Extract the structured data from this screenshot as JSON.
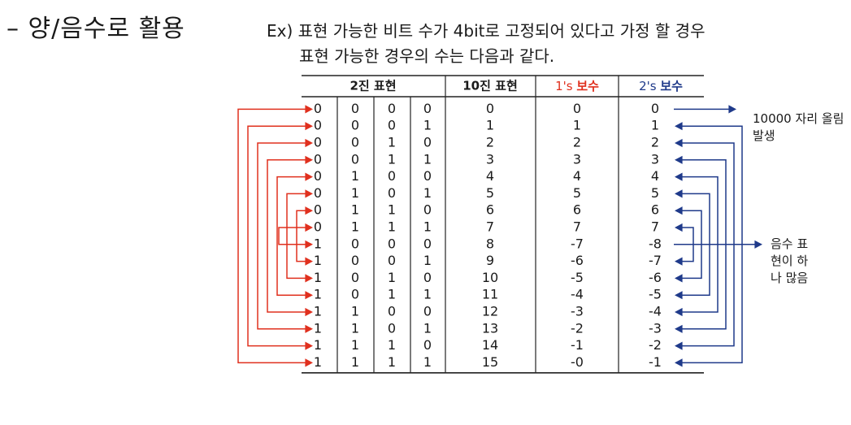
{
  "heading": "– 양/음수로 활용",
  "description": {
    "line1": "Ex)  표현 가능한 비트 수가 4bit로 고정되어 있다고 가정 할 경우",
    "line2": "표현 가능한 경우의 수는 다음과 같다."
  },
  "table": {
    "headers": {
      "binary": "2진 표현",
      "decimal": "10진 표현",
      "ones_prefix": "1's",
      "ones_suffix": "보수",
      "twos_prefix": "2's",
      "twos_suffix": "보수"
    },
    "rows": [
      {
        "bits": [
          "0",
          "0",
          "0",
          "0"
        ],
        "decimal": "0",
        "ones": "0",
        "twos": "0"
      },
      {
        "bits": [
          "0",
          "0",
          "0",
          "1"
        ],
        "decimal": "1",
        "ones": "1",
        "twos": "1"
      },
      {
        "bits": [
          "0",
          "0",
          "1",
          "0"
        ],
        "decimal": "2",
        "ones": "2",
        "twos": "2"
      },
      {
        "bits": [
          "0",
          "0",
          "1",
          "1"
        ],
        "decimal": "3",
        "ones": "3",
        "twos": "3"
      },
      {
        "bits": [
          "0",
          "1",
          "0",
          "0"
        ],
        "decimal": "4",
        "ones": "4",
        "twos": "4"
      },
      {
        "bits": [
          "0",
          "1",
          "0",
          "1"
        ],
        "decimal": "5",
        "ones": "5",
        "twos": "5"
      },
      {
        "bits": [
          "0",
          "1",
          "1",
          "0"
        ],
        "decimal": "6",
        "ones": "6",
        "twos": "6"
      },
      {
        "bits": [
          "0",
          "1",
          "1",
          "1"
        ],
        "decimal": "7",
        "ones": "7",
        "twos": "7"
      },
      {
        "bits": [
          "1",
          "0",
          "0",
          "0"
        ],
        "decimal": "8",
        "ones": "-7",
        "twos": "-8"
      },
      {
        "bits": [
          "1",
          "0",
          "0",
          "1"
        ],
        "decimal": "9",
        "ones": "-6",
        "twos": "-7"
      },
      {
        "bits": [
          "1",
          "0",
          "1",
          "0"
        ],
        "decimal": "10",
        "ones": "-5",
        "twos": "-6"
      },
      {
        "bits": [
          "1",
          "0",
          "1",
          "1"
        ],
        "decimal": "11",
        "ones": "-4",
        "twos": "-5"
      },
      {
        "bits": [
          "1",
          "1",
          "0",
          "0"
        ],
        "decimal": "12",
        "ones": "-3",
        "twos": "-4"
      },
      {
        "bits": [
          "1",
          "1",
          "0",
          "1"
        ],
        "decimal": "13",
        "ones": "-2",
        "twos": "-3"
      },
      {
        "bits": [
          "1",
          "1",
          "1",
          "0"
        ],
        "decimal": "14",
        "ones": "-1",
        "twos": "-2"
      },
      {
        "bits": [
          "1",
          "1",
          "1",
          "1"
        ],
        "decimal": "15",
        "ones": "-0",
        "twos": "-1"
      }
    ]
  },
  "annotations": {
    "carry_note": [
      "10000 자리 올림",
      "발생"
    ],
    "negative_note": [
      "음수 표",
      "현이 하",
      "나 많음"
    ]
  },
  "colors": {
    "red": "#e0301e",
    "blue": "#1f3a8a",
    "text": "#1a1a1a"
  }
}
